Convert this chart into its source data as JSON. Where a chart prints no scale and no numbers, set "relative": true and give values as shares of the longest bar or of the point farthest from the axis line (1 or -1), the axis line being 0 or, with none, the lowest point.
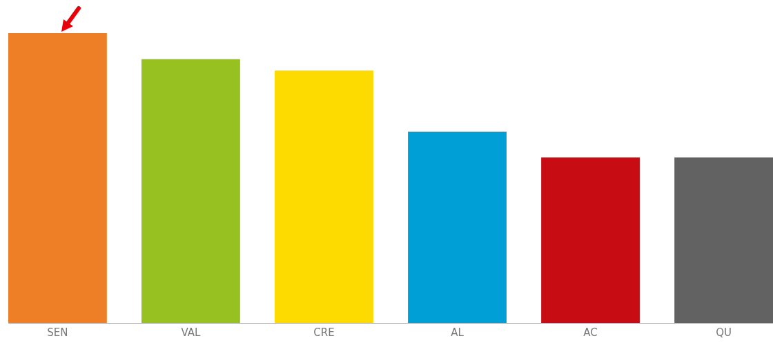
{
  "chart_data": {
    "type": "bar",
    "relative": true,
    "categories": [
      "SEN",
      "VAL",
      "CRE",
      "AL",
      "AC",
      "QU"
    ],
    "values": [
      1,
      0.91,
      0.871,
      0.66,
      0.571,
      0.571
    ],
    "colors": [
      "#ef7f27",
      "#97c121",
      "#fedb00",
      "#009fd6",
      "#c70c14",
      "#626262"
    ],
    "legend": false
  }
}
